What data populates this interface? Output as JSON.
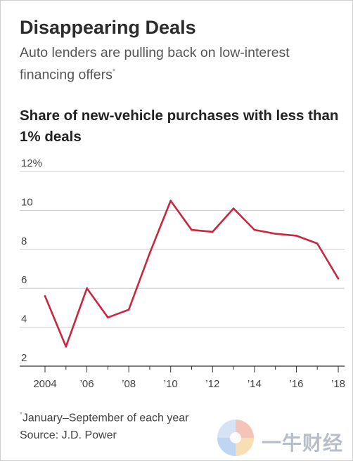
{
  "header": {
    "title": "Disappearing Deals",
    "subtitle": "Auto lenders are pulling back on low-interest financing offers",
    "subtitle_marker": "*"
  },
  "chart_heading": "Share of new-vehicle purchases with less than 1% deals",
  "footer": {
    "note_marker": "*",
    "note": "January–September of each year",
    "source": "Source: J.D. Power"
  },
  "watermark": {
    "text": "一牛财经",
    "logo": "petal-logo-icon"
  },
  "colors": {
    "line": "#c8273f",
    "grid": "#cccccc",
    "axis": "#333333"
  },
  "chart_data": {
    "type": "line",
    "title": "Share of new-vehicle purchases with less than 1% deals",
    "xlabel": "",
    "ylabel": "",
    "x": [
      2004,
      2005,
      2006,
      2007,
      2008,
      2009,
      2010,
      2011,
      2012,
      2013,
      2014,
      2015,
      2016,
      2017,
      2018
    ],
    "series": [
      {
        "values": [
          5.6,
          3.0,
          6.0,
          4.5,
          4.9,
          7.8,
          10.5,
          9.0,
          8.9,
          10.1,
          9.0,
          8.8,
          8.7,
          8.3,
          6.5
        ]
      }
    ],
    "ylim": [
      2,
      12
    ],
    "yticks": [
      2,
      4,
      6,
      8,
      10,
      12
    ],
    "ytick_labels": [
      "2",
      "4",
      "6",
      "8",
      "10",
      "12%"
    ],
    "xticks": [
      2004,
      2006,
      2008,
      2010,
      2012,
      2014,
      2016,
      2018
    ],
    "xtick_labels": [
      "2004",
      "’06",
      "’08",
      "’10",
      "’12",
      "’14",
      "’16",
      "’18"
    ],
    "grid": true,
    "legend": "none"
  }
}
